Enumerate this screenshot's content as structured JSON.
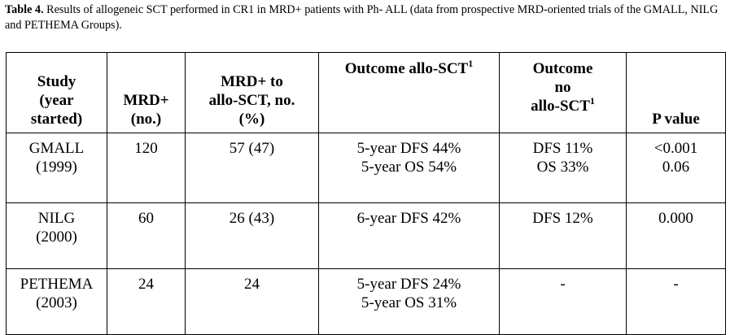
{
  "caption": {
    "label": "Table 4.",
    "text": "Results of allogeneic SCT performed in CR1 in MRD+ patients with Ph- ALL (data from prospective MRD-oriented trials of the GMALL, NILG and PETHEMA Groups)."
  },
  "headers": {
    "study": [
      "Study",
      "(year",
      "started)"
    ],
    "mrd": [
      "MRD+",
      "(no.)"
    ],
    "mrd_to_allo": [
      "MRD+ to",
      "allo-SCT, no.",
      "(%)"
    ],
    "outcome_allo": {
      "text": "Outcome allo-SCT",
      "sup": "1"
    },
    "outcome_no_allo": {
      "lines": [
        "Outcome",
        "no"
      ],
      "last": "allo-SCT",
      "sup": "1"
    },
    "p_value": "P value"
  },
  "rows": [
    {
      "study": "GMALL",
      "year": "(1999)",
      "mrd": "120",
      "mrd_to_allo": "57 (47)",
      "outcome_allo": [
        "5-year DFS 44%",
        "5-year OS 54%"
      ],
      "outcome_no_allo": [
        "DFS 11%",
        "OS 33%"
      ],
      "p_value": [
        "<0.001",
        "0.06"
      ]
    },
    {
      "study": "NILG",
      "year": "(2000)",
      "mrd": "60",
      "mrd_to_allo": "26 (43)",
      "outcome_allo": [
        "6-year DFS 42%"
      ],
      "outcome_no_allo": [
        "DFS 12%"
      ],
      "p_value": [
        "0.000"
      ]
    },
    {
      "study": "PETHEMA",
      "year": "(2003)",
      "mrd": "24",
      "mrd_to_allo": "24",
      "outcome_allo": [
        "5-year DFS 24%",
        "5-year OS 31%"
      ],
      "outcome_no_allo": [
        "-"
      ],
      "p_value": [
        "-"
      ]
    }
  ]
}
